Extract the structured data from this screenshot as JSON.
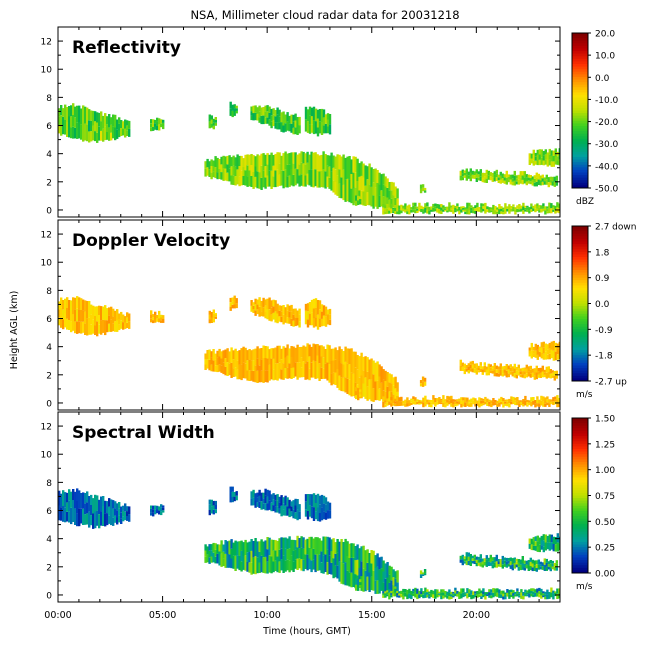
{
  "title": "NSA, Millimeter cloud radar data for 20031218",
  "ylabel": "Height AGL (km)",
  "xlabel": "Time (hours, GMT)",
  "chart_data": {
    "type": "heatmap",
    "x_ticks": [
      "00:00",
      "05:00",
      "10:00",
      "15:00",
      "20:00"
    ],
    "x_tick_hours": [
      0,
      5,
      10,
      15,
      20
    ],
    "xlim_hours": [
      0,
      24
    ],
    "y_ticks": [
      "0",
      "2",
      "4",
      "6",
      "8",
      "10",
      "12"
    ],
    "y_tick_values": [
      0,
      2,
      4,
      6,
      8,
      10,
      12
    ],
    "ylim_km": [
      -0.5,
      13
    ],
    "cloud_layers": [
      {
        "t0": 0.0,
        "t1": 3.4,
        "bottom": [
          5.4,
          5.0,
          4.8,
          5.0,
          5.3
        ],
        "top": [
          7.3,
          7.5,
          7.0,
          6.7,
          6.2
        ]
      },
      {
        "t0": 4.4,
        "t1": 5.0,
        "bottom": [
          5.6,
          5.8
        ],
        "top": [
          6.5,
          6.3
        ]
      },
      {
        "t0": 7.2,
        "t1": 7.5,
        "bottom": [
          5.7,
          5.9
        ],
        "top": [
          6.7,
          6.5
        ]
      },
      {
        "t0": 8.2,
        "t1": 8.5,
        "bottom": [
          6.6,
          6.8
        ],
        "top": [
          7.6,
          7.4
        ]
      },
      {
        "t0": 9.2,
        "t1": 11.5,
        "bottom": [
          6.4,
          6.0,
          5.6,
          5.4
        ],
        "top": [
          7.3,
          7.4,
          7.0,
          6.6
        ]
      },
      {
        "t0": 11.8,
        "t1": 13.0,
        "bottom": [
          5.5,
          5.3,
          5.5
        ],
        "top": [
          7.2,
          7.3,
          6.6
        ]
      },
      {
        "t0": 7.0,
        "t1": 16.2,
        "bottom": [
          2.4,
          1.9,
          1.5,
          1.6,
          1.8,
          1.6,
          0.5,
          0.2,
          0.1
        ],
        "top": [
          3.6,
          3.8,
          3.9,
          4.0,
          4.1,
          4.0,
          3.8,
          3.0,
          1.6
        ]
      },
      {
        "t0": 15.5,
        "t1": 24.0,
        "bottom": [
          -0.2,
          -0.2,
          -0.2,
          -0.2
        ],
        "top": [
          0.3,
          0.4,
          0.3,
          0.4
        ]
      },
      {
        "t0": 19.2,
        "t1": 23.8,
        "bottom": [
          2.2,
          2.0,
          1.8,
          1.7
        ],
        "top": [
          2.9,
          2.7,
          2.6,
          2.4
        ]
      },
      {
        "t0": 22.5,
        "t1": 24.0,
        "bottom": [
          3.2,
          3.1
        ],
        "top": [
          4.1,
          4.3
        ]
      },
      {
        "t0": 14.2,
        "t1": 14.4,
        "bottom": [
          0.2,
          0.4
        ],
        "top": [
          1.1,
          1.0
        ]
      },
      {
        "t0": 17.3,
        "t1": 17.5,
        "bottom": [
          1.2,
          1.3
        ],
        "top": [
          1.8,
          1.7
        ]
      }
    ],
    "panels": [
      {
        "id": "reflectivity",
        "label": "Reflectivity",
        "colorbar": {
          "ticks": [
            "20.0",
            "10.0",
            "0.0",
            "-10.0",
            "-20.0",
            "-30.0",
            "-40.0",
            "-50.0"
          ],
          "range": [
            -50,
            20
          ],
          "unit": "dBZ"
        }
      },
      {
        "id": "doppler",
        "label": "Doppler Velocity",
        "colorbar": {
          "ticks": [
            "2.7 down",
            "1.8",
            "0.9",
            "0.0",
            "-0.9",
            "-1.8",
            "-2.7 up"
          ],
          "range": [
            -2.7,
            2.7
          ],
          "unit": "m/s"
        }
      },
      {
        "id": "spectral",
        "label": "Spectral Width",
        "colorbar": {
          "ticks": [
            "1.50",
            "1.25",
            "1.00",
            "0.75",
            "0.50",
            "0.25",
            "0.00"
          ],
          "range": [
            0,
            1.5
          ],
          "unit": "m/s"
        }
      }
    ],
    "colormap": [
      "#000080",
      "#0040c0",
      "#00a0a0",
      "#00b050",
      "#40d020",
      "#c0e000",
      "#ffe000",
      "#ff9000",
      "#ff3000",
      "#c00000",
      "#800000"
    ]
  }
}
